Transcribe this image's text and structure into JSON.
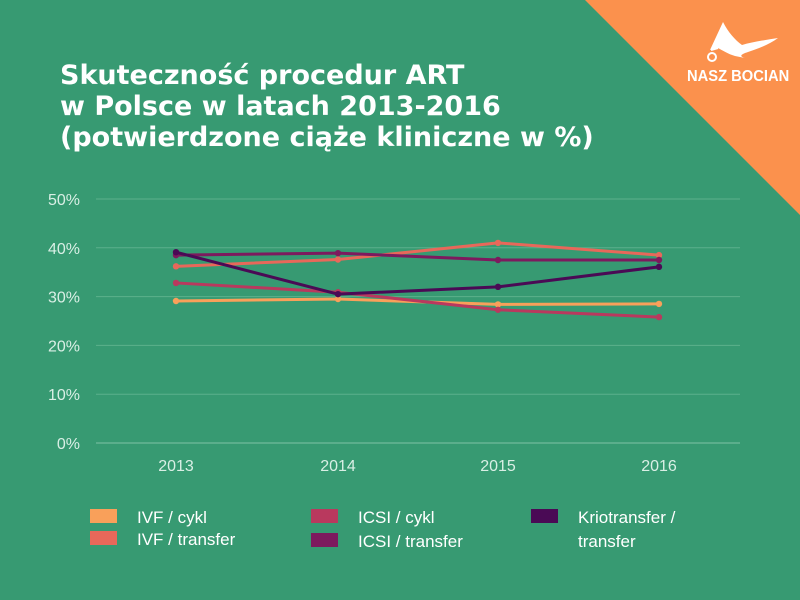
{
  "colors": {
    "background": "#379a72",
    "corner": "#fb914d",
    "grid": "#5cb08c",
    "text": "#ffffff"
  },
  "logo": {
    "text": "NASZ BOCIAN",
    "icon": "stork-icon"
  },
  "title_lines": [
    "Skuteczność procedur ART",
    "w Polsce w latach 2013-2016",
    "(potwierdzone ciąże kliniczne w %)"
  ],
  "chart_data": {
    "type": "line",
    "title": "Skuteczność procedur ART w Polsce w latach 2013-2016 (potwierdzone ciąże kliniczne w %)",
    "categories": [
      "2013",
      "2014",
      "2015",
      "2016"
    ],
    "ylim": [
      0,
      50
    ],
    "yticks": [
      0,
      10,
      20,
      30,
      40,
      50
    ],
    "ytick_labels": [
      "0%",
      "10%",
      "20%",
      "30%",
      "40%",
      "50%"
    ],
    "grid": true,
    "legend_placement": "bottom",
    "series": [
      {
        "name": "IVF / cykl",
        "color": "#f9a05a",
        "values": [
          29.1,
          29.5,
          28.4,
          28.5
        ]
      },
      {
        "name": "IVF / transfer",
        "color": "#e8685a",
        "values": [
          36.2,
          37.6,
          41.0,
          38.5
        ]
      },
      {
        "name": "ICSI / cykl",
        "color": "#b9395e",
        "values": [
          32.8,
          30.9,
          27.3,
          25.8
        ]
      },
      {
        "name": "ICSI / transfer",
        "color": "#7d1a5e",
        "values": [
          38.5,
          38.9,
          37.5,
          37.5
        ]
      },
      {
        "name": "Kriotransfer / transfer",
        "color": "#4a0a55",
        "values": [
          39.1,
          30.5,
          32.0,
          36.1
        ]
      }
    ]
  },
  "legend_lines": {
    "kriotransfer": [
      "Kriotransfer /",
      "transfer"
    ]
  }
}
